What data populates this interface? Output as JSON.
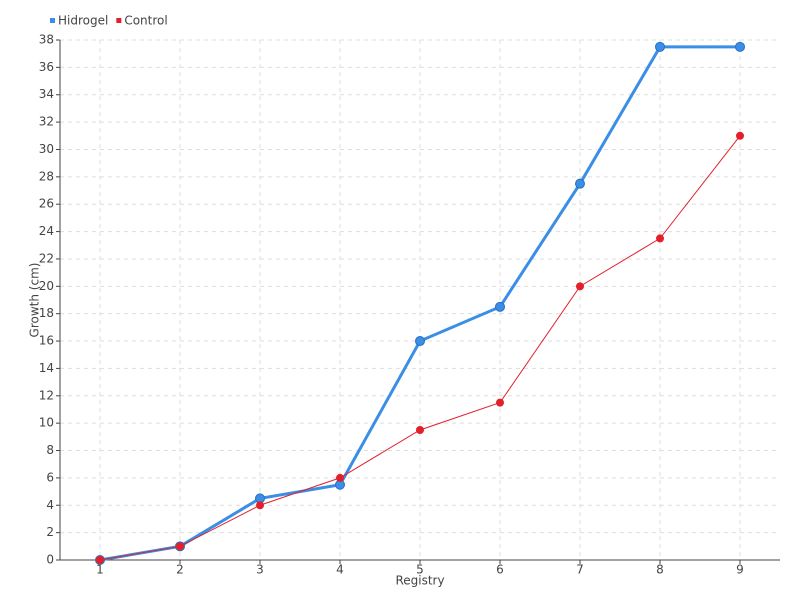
{
  "chart_data": {
    "type": "line",
    "x": [
      1,
      2,
      3,
      4,
      5,
      6,
      7,
      8,
      9
    ],
    "xlim": [
      0.5,
      9.5
    ],
    "xticks": [
      1,
      2,
      3,
      4,
      5,
      6,
      7,
      8,
      9
    ],
    "ylim": [
      0,
      38
    ],
    "yticks": [
      0,
      2,
      4,
      6,
      8,
      10,
      12,
      14,
      16,
      18,
      20,
      22,
      24,
      26,
      28,
      30,
      32,
      34,
      36,
      38
    ],
    "xlabel": "Registry",
    "ylabel": "Growth (cm)",
    "grid": true,
    "legend": "top-left",
    "series": [
      {
        "name": "Hidrogel",
        "color": "#3a8ee6",
        "values": [
          0,
          1,
          4.5,
          5.5,
          16,
          18.5,
          27.5,
          37.5,
          37.5
        ]
      },
      {
        "name": "Control",
        "color": "#e3202a",
        "values": [
          0,
          1,
          4,
          6,
          9.5,
          11.5,
          20,
          23.5,
          31
        ]
      }
    ]
  }
}
